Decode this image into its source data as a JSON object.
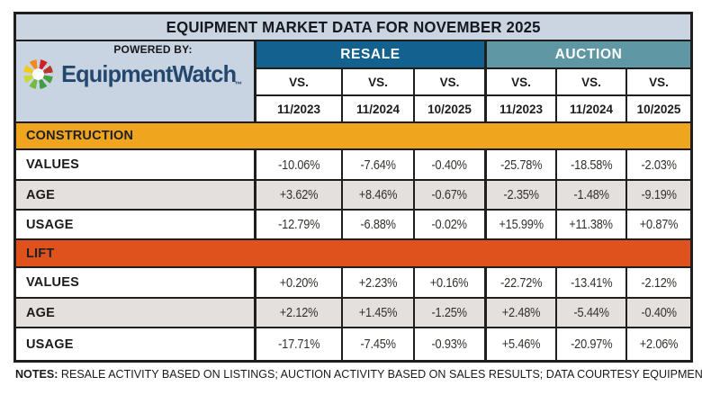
{
  "title": "EQUIPMENT MARKET DATA FOR NOVEMBER 2025",
  "header": {
    "powered_by": "POWERED BY:",
    "logo_text": "EquipmentWatch",
    "logo_tm": "™",
    "groups": [
      {
        "label": "RESALE"
      },
      {
        "label": "AUCTION"
      }
    ],
    "vs": [
      "VS.",
      "VS.",
      "VS.",
      "VS.",
      "VS.",
      "VS."
    ],
    "periods": [
      "11/2023",
      "11/2024",
      "10/2025",
      "11/2023",
      "11/2024",
      "10/2025"
    ]
  },
  "sections": [
    {
      "label": "CONSTRUCTION",
      "rows": [
        {
          "label": "VALUES",
          "values": [
            "-10.06%",
            "-7.64%",
            "-0.40%",
            "-25.78%",
            "-18.58%",
            "-2.03%"
          ]
        },
        {
          "label": "AGE",
          "values": [
            "+3.62%",
            "+8.46%",
            "-0.67%",
            "-2.35%",
            "-1.48%",
            "-9.19%"
          ]
        },
        {
          "label": "USAGE",
          "values": [
            "-12.79%",
            "-6.88%",
            "-0.02%",
            "+15.99%",
            "+11.38%",
            "+0.87%"
          ]
        }
      ]
    },
    {
      "label": "LIFT",
      "rows": [
        {
          "label": "VALUES",
          "values": [
            "+0.20%",
            "+2.23%",
            "+0.16%",
            "-22.72%",
            "-13.41%",
            "-2.12%"
          ]
        },
        {
          "label": "AGE",
          "values": [
            "+2.12%",
            "+1.45%",
            "-1.25%",
            "+2.48%",
            "-5.44%",
            "-0.40%"
          ]
        },
        {
          "label": "USAGE",
          "values": [
            "-17.71%",
            "-7.45%",
            "-0.93%",
            "+5.46%",
            "-20.97%",
            "+2.06%"
          ]
        }
      ]
    }
  ],
  "notes": {
    "label": "NOTES:",
    "text": " RESALE ACTIVITY BASED ON LISTINGS; AUCTION ACTIVITY BASED ON SALES RESULTS; DATA COURTESY EQUIPMENTWATCH"
  },
  "colors": {
    "resale_header": "#13618f",
    "auction_header": "#5f97a4",
    "construction_header": "#f0a51e",
    "lift_header": "#e0521d",
    "panel_bg": "#cbd5e2",
    "alt_row_bg": "#e3e0dd",
    "grid_line": "#1f1e1c",
    "logo_blue": "#24476e"
  },
  "chart_data": {
    "type": "table",
    "title": "EQUIPMENT MARKET DATA FOR NOVEMBER 2025",
    "column_groups": [
      "RESALE",
      "AUCTION"
    ],
    "columns": [
      "RESALE VS. 11/2023",
      "RESALE VS. 11/2024",
      "RESALE VS. 10/2025",
      "AUCTION VS. 11/2023",
      "AUCTION VS. 11/2024",
      "AUCTION VS. 10/2025"
    ],
    "rows": [
      {
        "section": "CONSTRUCTION",
        "metric": "VALUES",
        "values_pct": [
          -10.06,
          -7.64,
          -0.4,
          -25.78,
          -18.58,
          -2.03
        ]
      },
      {
        "section": "CONSTRUCTION",
        "metric": "AGE",
        "values_pct": [
          3.62,
          8.46,
          -0.67,
          -2.35,
          -1.48,
          -9.19
        ]
      },
      {
        "section": "CONSTRUCTION",
        "metric": "USAGE",
        "values_pct": [
          -12.79,
          -6.88,
          -0.02,
          15.99,
          11.38,
          0.87
        ]
      },
      {
        "section": "LIFT",
        "metric": "VALUES",
        "values_pct": [
          0.2,
          2.23,
          0.16,
          -22.72,
          -13.41,
          -2.12
        ]
      },
      {
        "section": "LIFT",
        "metric": "AGE",
        "values_pct": [
          2.12,
          1.45,
          -1.25,
          2.48,
          -5.44,
          -0.4
        ]
      },
      {
        "section": "LIFT",
        "metric": "USAGE",
        "values_pct": [
          -17.71,
          -7.45,
          -0.93,
          5.46,
          -20.97,
          2.06
        ]
      }
    ],
    "notes": "RESALE ACTIVITY BASED ON LISTINGS; AUCTION ACTIVITY BASED ON SALES RESULTS; DATA COURTESY EQUIPMENTWATCH"
  }
}
